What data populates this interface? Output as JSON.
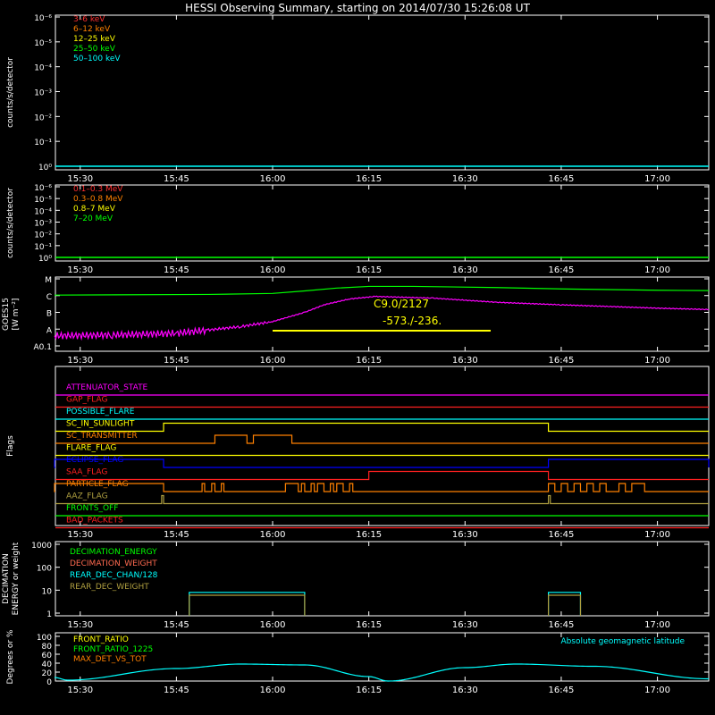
{
  "title": "HESSI Observing Summary, starting on 2014/07/30 15:26:08 UT",
  "time_ticks": [
    "15:30",
    "15:45",
    "16:00",
    "16:15",
    "16:30",
    "16:45",
    "17:00"
  ],
  "colors": {
    "background": "#000000",
    "axes": "#ffffff",
    "magenta": "#ff00ff",
    "red": "#ff2020",
    "orange": "#ff8000",
    "yellow": "#ffff00",
    "green": "#00ff00",
    "cyan": "#00ffff",
    "blue": "#0000ff",
    "olive": "#b0a040",
    "salmon": "#ff6a50"
  },
  "chart_data": [
    {
      "id": "low-energy-rates",
      "type": "line",
      "ylabel": "counts/s/detector",
      "y_scale": "log",
      "yticks": [
        "10⁰",
        "10⁻¹",
        "10⁻²",
        "10⁻³",
        "10⁻⁴",
        "10⁻⁵",
        "10⁻⁶"
      ],
      "legend": [
        {
          "label": "3–6 keV",
          "color": "#ff3030"
        },
        {
          "label": "6–12 keV",
          "color": "#ff8000"
        },
        {
          "label": "12–25 keV",
          "color": "#ffff00"
        },
        {
          "label": "25–50 keV",
          "color": "#00ff00"
        },
        {
          "label": "50–100 keV",
          "color": "#00ffff"
        }
      ],
      "series": [
        {
          "name": "50–100 keV",
          "color": "#00ffff",
          "constant_value": 1
        }
      ]
    },
    {
      "id": "high-energy-rates",
      "type": "line",
      "ylabel": "counts/s/detector",
      "y_scale": "log",
      "yticks": [
        "10⁰",
        "10⁻¹",
        "10⁻²",
        "10⁻³",
        "10⁻⁴",
        "10⁻⁵",
        "10⁻⁶"
      ],
      "legend": [
        {
          "label": "0.1–0.3 MeV",
          "color": "#ff3030"
        },
        {
          "label": "0.3–0.8 MeV",
          "color": "#ff8000"
        },
        {
          "label": "0.8–7 MeV",
          "color": "#ffff00"
        },
        {
          "label": "7–20 MeV",
          "color": "#00ff00"
        }
      ],
      "series": [
        {
          "name": "7–20 MeV",
          "color": "#00ff00",
          "constant_value": 1
        }
      ]
    },
    {
      "id": "goes",
      "type": "line",
      "ylabel": "GOES15",
      "ylabel_unit": "[W m⁻²]",
      "y_scale": "log",
      "yticks": [
        "A0.1",
        "A",
        "B",
        "C",
        "M"
      ],
      "annotation": {
        "flare_class": "C9.0/2127",
        "location": "-573./-236.",
        "start": "16:00",
        "end": "16:34"
      },
      "series": [
        {
          "name": "GOES long",
          "color": "#00ff00",
          "points": [
            [
              "15:26",
              -5.97
            ],
            [
              "15:50",
              -5.93
            ],
            [
              "16:00",
              -5.87
            ],
            [
              "16:05",
              -5.72
            ],
            [
              "16:10",
              -5.55
            ],
            [
              "16:15",
              -5.45
            ],
            [
              "16:22",
              -5.45
            ],
            [
              "16:35",
              -5.52
            ],
            [
              "16:45",
              -5.6
            ],
            [
              "17:00",
              -5.68
            ],
            [
              "17:08",
              -5.7
            ]
          ]
        },
        {
          "name": "GOES short",
          "color": "#ff00ff",
          "points": [
            [
              "15:26",
              -8.4
            ],
            [
              "15:35",
              -8.35
            ],
            [
              "15:45",
              -8.25
            ],
            [
              "15:50",
              -8.05
            ],
            [
              "15:55",
              -7.85
            ],
            [
              "16:00",
              -7.55
            ],
            [
              "16:05",
              -7.0
            ],
            [
              "16:08",
              -6.55
            ],
            [
              "16:12",
              -6.2
            ],
            [
              "16:16",
              -6.05
            ],
            [
              "16:25",
              -6.15
            ],
            [
              "16:35",
              -6.4
            ],
            [
              "16:45",
              -6.55
            ],
            [
              "17:00",
              -6.75
            ],
            [
              "17:08",
              -6.83
            ]
          ]
        }
      ]
    },
    {
      "id": "flags",
      "type": "step",
      "ylabel": "Flags",
      "flags": [
        {
          "label": "ATTENUATOR_STATE",
          "color": "#ff00ff",
          "segments": []
        },
        {
          "label": "GAP_FLAG",
          "color": "#ff2020",
          "segments": []
        },
        {
          "label": "POSSIBLE_FLARE",
          "color": "#00ffff",
          "segments": []
        },
        {
          "label": "SC_IN_SUNLIGHT",
          "color": "#ffff00",
          "segments": [
            [
              "15:43",
              "16:43"
            ]
          ]
        },
        {
          "label": "SC_TRANSMITTER",
          "color": "#ff8000",
          "segments": [
            [
              "15:51",
              "15:56"
            ],
            [
              "15:57",
              "16:03"
            ]
          ]
        },
        {
          "label": "FLARE_FLAG",
          "color": "#ffff00",
          "segments": []
        },
        {
          "label": "ECLIPSE_FLAG",
          "color": "#0000ff",
          "segments": [
            [
              "15:26",
              "15:43"
            ],
            [
              "16:43",
              "17:08"
            ]
          ]
        },
        {
          "label": "SAA_FLAG",
          "color": "#ff2020",
          "segments": [
            [
              "16:15",
              "16:43"
            ]
          ]
        },
        {
          "label": "PARTICLE_FLAG",
          "color": "#ff8000",
          "segments": [
            [
              "15:26",
              "15:43"
            ],
            [
              "15:49",
              "15:49.4"
            ],
            [
              "15:50.5",
              "15:51"
            ],
            [
              "15:52",
              "15:52.4"
            ],
            [
              "16:02",
              "16:04"
            ],
            [
              "16:04.5",
              "16:05"
            ],
            [
              "16:06",
              "16:06.5"
            ],
            [
              "16:07",
              "16:08"
            ],
            [
              "16:09",
              "16:09.5"
            ],
            [
              "16:10",
              "16:11"
            ],
            [
              "16:12",
              "16:12.5"
            ],
            [
              "16:43",
              "16:44"
            ],
            [
              "16:45",
              "16:46"
            ],
            [
              "16:47",
              "16:48"
            ],
            [
              "16:49",
              "16:50"
            ],
            [
              "16:51",
              "16:52"
            ],
            [
              "16:54",
              "16:55"
            ],
            [
              "16:56",
              "16:58"
            ]
          ]
        },
        {
          "label": "AAZ_FLAG",
          "color": "#b0a040",
          "segments": [
            [
              "15:42.7",
              "15:43"
            ],
            [
              "16:43",
              "16:43.3"
            ]
          ]
        },
        {
          "label": "FRONTS_OFF",
          "color": "#00ff00",
          "segments": []
        },
        {
          "label": "BAD_PACKETS",
          "color": "#ff2020",
          "segments": []
        }
      ]
    },
    {
      "id": "decimation",
      "type": "step",
      "ylabel": "DECIMATION ENERGY or weight",
      "y_scale": "log",
      "yticks": [
        "1",
        "10",
        "100",
        "1000"
      ],
      "legend": [
        {
          "label": "DECIMATION_ENERGY",
          "color": "#00ff00"
        },
        {
          "label": "DECIMATION_WEIGHT",
          "color": "#ff6a50"
        },
        {
          "label": "REAR_DEC_CHAN/128",
          "color": "#00ffff"
        },
        {
          "label": "REAR_DEC_WEIGHT",
          "color": "#b0a040"
        }
      ],
      "series": [
        {
          "name": "REAR_DEC_CHAN/128",
          "color": "#00ffff",
          "segments": [
            [
              "15:47",
              "16:05",
              8
            ],
            [
              "16:43",
              "16:48",
              8
            ]
          ]
        },
        {
          "name": "REAR_DEC_WEIGHT",
          "color": "#b0a040",
          "segments": [
            [
              "15:47",
              "16:05",
              6
            ],
            [
              "16:43",
              "16:48",
              6
            ]
          ]
        }
      ]
    },
    {
      "id": "geomagnetic",
      "type": "line",
      "ylabel": "Degrees or %",
      "yticks": [
        "0",
        "20",
        "40",
        "60",
        "80",
        "100"
      ],
      "ylim": [
        0,
        100
      ],
      "legend": [
        {
          "label": "FRONT_RATIO",
          "color": "#ffff00"
        },
        {
          "label": "FRONT_RATIO_1225",
          "color": "#00ff00"
        },
        {
          "label": "MAX_DET_VS_TOT",
          "color": "#ff8000"
        }
      ],
      "right_legend": {
        "label": "Absolute geomagnetic latitude",
        "color": "#00ffff"
      },
      "series": [
        {
          "name": "Absolute geomagnetic latitude",
          "color": "#00ffff",
          "points": [
            [
              "15:26",
              8
            ],
            [
              "15:28",
              2
            ],
            [
              "15:45",
              28
            ],
            [
              "15:55",
              38
            ],
            [
              "16:05",
              36
            ],
            [
              "16:15",
              10
            ],
            [
              "16:18",
              0
            ],
            [
              "16:30",
              30
            ],
            [
              "16:38",
              38
            ],
            [
              "16:50",
              33
            ],
            [
              "17:08",
              5
            ]
          ]
        }
      ]
    }
  ]
}
